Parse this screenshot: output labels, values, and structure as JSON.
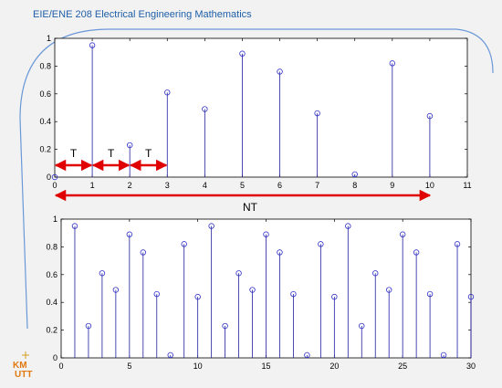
{
  "slide": {
    "title": "EIE/ENE 208 Electrical Engineering Mathematics",
    "logo_text": "KMUTT"
  },
  "colors": {
    "stem": "#1f1fa0",
    "marker": "#3030c8",
    "arrow": "#e00000",
    "frame_arc": "#6b98d8",
    "title": "#1f5fa8"
  },
  "annotations": {
    "period_label": "T",
    "span_label": "NT"
  },
  "chart_data": [
    {
      "type": "stem",
      "x": [
        0,
        1,
        2,
        3,
        4,
        5,
        6,
        7,
        8,
        9,
        10
      ],
      "values": [
        0,
        0.95,
        0.23,
        0.61,
        0.49,
        0.89,
        0.76,
        0.46,
        0.02,
        0.82,
        0.44
      ],
      "xlim": [
        0,
        11
      ],
      "ylim": [
        0,
        1
      ],
      "xticks": [
        "0",
        "1",
        "2",
        "3",
        "4",
        "5",
        "6",
        "7",
        "8",
        "9",
        "10",
        "11"
      ],
      "yticks": [
        "0",
        "0.2",
        "0.4",
        "0.6",
        "0.8",
        "1"
      ],
      "grid": false
    },
    {
      "type": "stem",
      "x": [
        1,
        2,
        3,
        4,
        5,
        6,
        7,
        8,
        9,
        10,
        11,
        12,
        13,
        14,
        15,
        16,
        17,
        18,
        19,
        20,
        21,
        22,
        23,
        24,
        25,
        26,
        27,
        28,
        29,
        30
      ],
      "values": [
        0.95,
        0.23,
        0.61,
        0.49,
        0.89,
        0.76,
        0.46,
        0.02,
        0.82,
        0.44,
        0.95,
        0.23,
        0.61,
        0.49,
        0.89,
        0.76,
        0.46,
        0.02,
        0.82,
        0.44,
        0.95,
        0.23,
        0.61,
        0.49,
        0.89,
        0.76,
        0.46,
        0.02,
        0.82,
        0.44
      ],
      "xlim": [
        0,
        30
      ],
      "ylim": [
        0,
        1
      ],
      "xticks": [
        "0",
        "5",
        "10",
        "15",
        "20",
        "25",
        "30"
      ],
      "yticks": [
        "0",
        "0.2",
        "0.4",
        "0.6",
        "0.8",
        "1"
      ],
      "grid": false
    }
  ]
}
